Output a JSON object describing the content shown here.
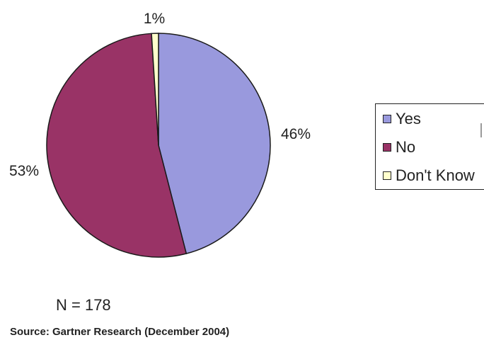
{
  "chart_data": {
    "type": "pie",
    "slices": [
      {
        "label": "Yes",
        "value": 46,
        "value_label": "46%",
        "color": "#9999dd"
      },
      {
        "label": "No",
        "value": 53,
        "value_label": "53%",
        "color": "#993366"
      },
      {
        "label": "Don't Know",
        "value": 1,
        "value_label": "1%",
        "color": "#ffffcc"
      }
    ],
    "legend_placement": "right",
    "note": "N = 178",
    "source": "Source: Gartner Research (December 2004)"
  }
}
